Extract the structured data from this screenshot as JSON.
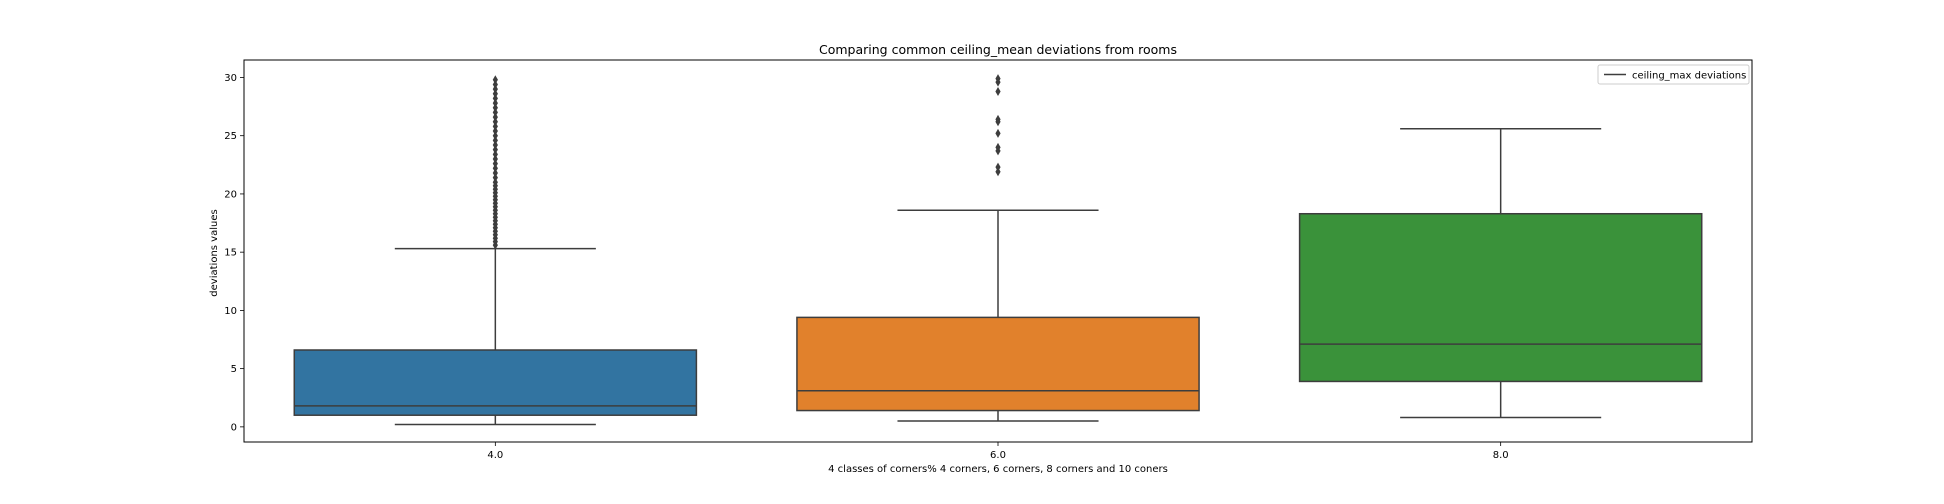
{
  "chart_data": {
    "type": "box",
    "title": "Comparing common ceiling_mean deviations from rooms",
    "xlabel": "4 classes of corners% 4 corners, 6 corners, 8 corners and 10 coners",
    "ylabel": "deviations values",
    "ylim": [
      -1.3,
      31.5
    ],
    "yticks": [
      0,
      5,
      10,
      15,
      20,
      25,
      30
    ],
    "legend": {
      "label": "ceiling_max deviations",
      "placement": "top-right"
    },
    "categories": [
      "4.0",
      "6.0",
      "8.0"
    ],
    "boxes": [
      {
        "category": "4.0",
        "color": "#3274a1",
        "whisker_low": 0.2,
        "q1": 1.0,
        "median": 1.8,
        "q3": 6.6,
        "whisker_high": 15.3,
        "outliers": [
          15.6,
          15.9,
          16.2,
          16.5,
          16.8,
          17.1,
          17.4,
          17.7,
          18.0,
          18.3,
          18.6,
          18.9,
          19.2,
          19.5,
          19.8,
          20.1,
          20.4,
          20.7,
          21.0,
          21.4,
          21.8,
          22.2,
          22.6,
          23.0,
          23.4,
          23.8,
          24.2,
          24.6,
          25.0,
          25.4,
          25.8,
          26.2,
          26.6,
          27.0,
          27.4,
          27.8,
          28.2,
          28.6,
          29.0,
          29.4,
          29.8
        ]
      },
      {
        "category": "6.0",
        "color": "#e1812c",
        "whisker_low": 0.5,
        "q1": 1.4,
        "median": 3.1,
        "q3": 9.4,
        "whisker_high": 18.6,
        "outliers": [
          21.9,
          22.3,
          23.7,
          24.0,
          25.2,
          26.2,
          26.4,
          28.8,
          29.6,
          29.9
        ]
      },
      {
        "category": "8.0",
        "color": "#3a923a",
        "whisker_low": 0.8,
        "q1": 3.9,
        "median": 7.1,
        "q3": 18.3,
        "whisker_high": 25.6,
        "outliers": []
      }
    ]
  }
}
